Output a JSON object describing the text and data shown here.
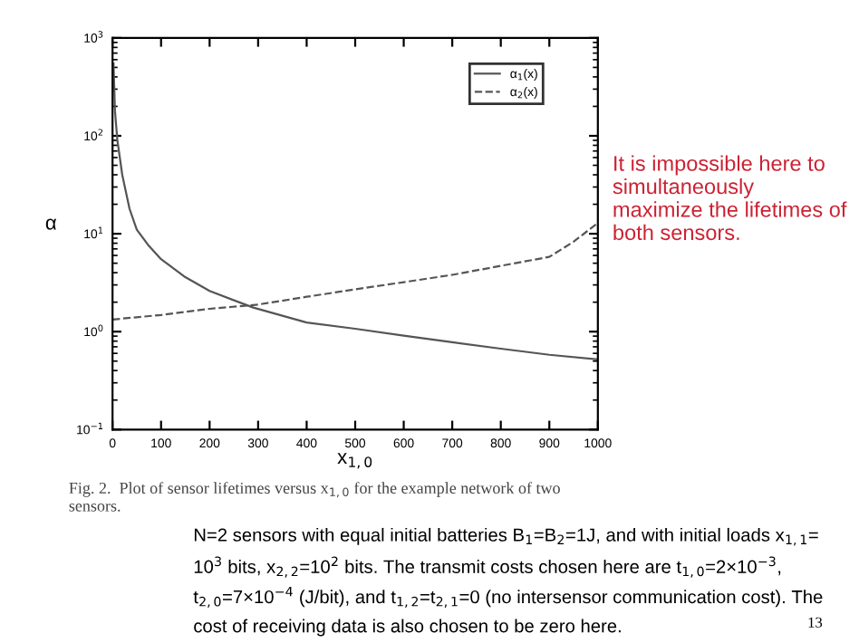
{
  "chart_data": {
    "type": "line",
    "xlabel": "x$_{1,0}$",
    "ylabel": "α",
    "series": [
      {
        "name": "α$_{1}$(x)",
        "color": "#555555",
        "line_style": "solid",
        "x": [
          2,
          5,
          10,
          20,
          35,
          50,
          75,
          100,
          150,
          200,
          290,
          400,
          500,
          600,
          700,
          800,
          900,
          1000
        ],
        "values": [
          550,
          180,
          90,
          40,
          18,
          11,
          7.5,
          5.5,
          3.6,
          2.6,
          1.76,
          1.24,
          1.07,
          0.91,
          0.78,
          0.67,
          0.58,
          0.52
        ]
      },
      {
        "name": "α$_{2}$(x)",
        "color": "#555555",
        "line_style": "dashed",
        "x": [
          0,
          100,
          200,
          300,
          400,
          500,
          600,
          700,
          800,
          900,
          950,
          1000
        ],
        "values": [
          1.33,
          1.48,
          1.71,
          1.89,
          2.27,
          2.7,
          3.2,
          3.8,
          4.7,
          5.8,
          8.3,
          12.9
        ]
      }
    ],
    "log": "y",
    "xlim": [
      0,
      1000
    ],
    "xticks": [
      0,
      100,
      200,
      300,
      400,
      500,
      600,
      700,
      800,
      900,
      1000
    ],
    "ylim": [
      0.1,
      1000
    ],
    "yticks": [
      {
        "value": 0.1,
        "label": "10$^{−1}$"
      },
      {
        "value": 1,
        "label": "10$^{0}$"
      },
      {
        "value": 10,
        "label": "10$^{1}$"
      },
      {
        "value": 100,
        "label": "10$^{2}$"
      },
      {
        "value": 1000,
        "label": "10$^{3}$"
      }
    ],
    "grid": false,
    "legend": "top right",
    "annotations": [
      "It is impossible here to\nsimultaneously\nmaximize the lifetimes of\nboth sensors.",
      "Fig. 2.  Plot of sensor lifetimes versus x$_{1,0}$ for the example network of two\nsensors.",
      "N=2 sensors with equal initial batteries B$_{1}$=B$_{2}$=1J, and with initial loads x$_{1,1}$=",
      "10$^{3}$ bits, x$_{2,2}$=10$^{2}$ bits. The transmit costs chosen here are t$_{1,0}$=2×10$^{−3}$,",
      "t$_{2,0}$=7×10$^{−4}$ (J/bit), and t$_{1,2}$=t$_{2,1}$=0 (no intersensor communication cost). The",
      "cost of receiving data is also chosen to be zero here.",
      "13"
    ]
  }
}
